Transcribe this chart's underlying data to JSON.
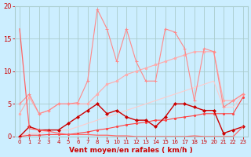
{
  "xlabel": "Vent moyen/en rafales ( km/h )",
  "bg_color": "#cceeff",
  "grid_color": "#aacccc",
  "line_color_dark": "#cc0000",
  "line_color_mid": "#ff4444",
  "line_color_light1": "#ff8888",
  "line_color_light2": "#ffaaaa",
  "line_color_light3": "#ffcccc",
  "text_color": "#cc0000",
  "xlim": [
    -0.5,
    23.5
  ],
  "ylim": [
    0,
    20
  ],
  "xticks": [
    0,
    1,
    2,
    3,
    4,
    5,
    6,
    7,
    8,
    9,
    10,
    11,
    12,
    13,
    14,
    15,
    16,
    17,
    18,
    19,
    20,
    21,
    22,
    23
  ],
  "yticks": [
    0,
    5,
    10,
    15,
    20
  ],
  "arrows": [
    "↓",
    "↗",
    "↓",
    "↓",
    "↓",
    "↓",
    "↓",
    "↓",
    "↓",
    "↓",
    "→",
    "↓",
    "↓",
    "↓",
    "↓",
    "↓",
    "↓",
    "↓",
    "↓",
    "↓",
    "↓",
    "↓",
    "↓",
    "?"
  ],
  "line_jagged_light_x": [
    0,
    1,
    2,
    3,
    4,
    5,
    6,
    7,
    8,
    9,
    10,
    11,
    12,
    13,
    14,
    15,
    16,
    17,
    18,
    19,
    20,
    21,
    22,
    23
  ],
  "line_jagged_light_y": [
    5.0,
    6.5,
    3.5,
    4.0,
    5.0,
    5.0,
    5.2,
    8.5,
    19.5,
    16.5,
    11.5,
    16.5,
    11.5,
    8.5,
    8.5,
    16.5,
    16.0,
    13.5,
    5.5,
    13.5,
    13.0,
    4.5,
    5.5,
    6.5
  ],
  "line_trend_upper_x": [
    0,
    1,
    2,
    3,
    4,
    5,
    6,
    7,
    8,
    9,
    10,
    11,
    12,
    13,
    14,
    15,
    16,
    17,
    18,
    19,
    20,
    21,
    22,
    23
  ],
  "line_trend_upper_y": [
    3.5,
    6.0,
    3.5,
    4.0,
    5.0,
    5.0,
    5.0,
    5.0,
    6.5,
    8.0,
    8.5,
    9.5,
    10.0,
    10.5,
    11.0,
    11.5,
    12.0,
    12.5,
    13.0,
    13.0,
    13.0,
    5.5,
    5.5,
    6.5
  ],
  "line_trend_lower_x": [
    0,
    1,
    2,
    3,
    4,
    5,
    6,
    7,
    8,
    9,
    10,
    11,
    12,
    13,
    14,
    15,
    16,
    17,
    18,
    19,
    20,
    21,
    22,
    23
  ],
  "line_trend_lower_y": [
    0.0,
    0.5,
    0.5,
    1.0,
    1.0,
    1.0,
    1.5,
    2.0,
    2.5,
    3.0,
    3.5,
    4.0,
    4.5,
    5.0,
    5.5,
    6.0,
    6.5,
    7.0,
    7.5,
    8.0,
    8.5,
    4.5,
    4.5,
    6.5
  ],
  "line_dark_jagged_x": [
    0,
    1,
    2,
    3,
    4,
    5,
    6,
    7,
    8,
    9,
    10,
    11,
    12,
    13,
    14,
    15,
    16,
    17,
    18,
    19,
    20,
    21,
    22,
    23
  ],
  "line_dark_jagged_y": [
    0.0,
    1.5,
    1.0,
    1.0,
    1.0,
    2.0,
    3.0,
    4.0,
    5.0,
    3.5,
    4.0,
    3.0,
    2.5,
    2.5,
    1.5,
    3.0,
    5.0,
    5.0,
    4.5,
    4.0,
    4.0,
    0.5,
    1.0,
    1.5
  ],
  "line_dark_flat_x": [
    0,
    1,
    2,
    3,
    4,
    5,
    6,
    7,
    8,
    9,
    10,
    11,
    12,
    13,
    14,
    15,
    16,
    17,
    18,
    19,
    20,
    21,
    22,
    23
  ],
  "line_dark_flat_y": [
    0.0,
    0.2,
    0.2,
    0.3,
    0.3,
    0.3,
    0.5,
    0.7,
    1.0,
    1.2,
    1.5,
    1.8,
    2.0,
    2.2,
    2.5,
    2.5,
    2.8,
    3.0,
    3.2,
    3.5,
    3.5,
    3.5,
    3.5,
    6.0
  ],
  "line_tall_x": [
    0,
    1,
    2,
    3,
    4,
    5,
    6,
    7,
    8,
    9,
    10,
    11,
    12,
    13,
    14,
    15,
    16,
    17,
    18,
    19,
    20,
    21,
    22,
    23
  ],
  "line_tall_y": [
    16.5,
    1.2,
    1.0,
    0.8,
    0.5,
    0.3,
    0.3,
    0.3,
    0.2,
    0.2,
    0.1,
    0.1,
    0.0,
    0.0,
    0.0,
    0.0,
    0.0,
    0.0,
    0.1,
    0.0,
    0.0,
    0.0,
    0.0,
    1.5
  ]
}
